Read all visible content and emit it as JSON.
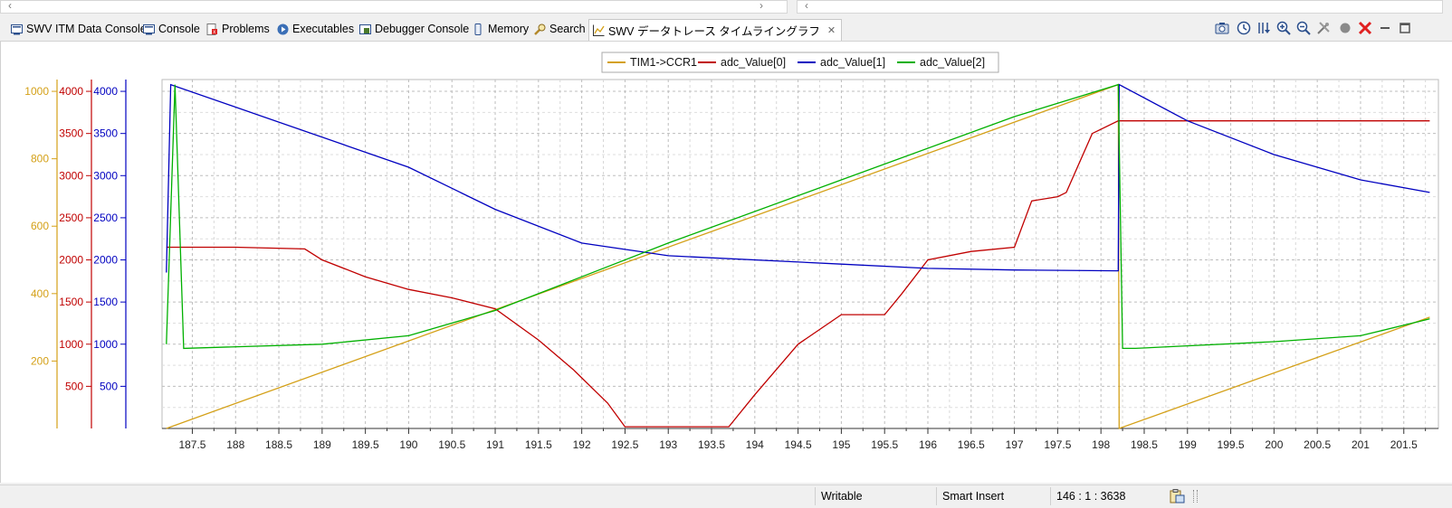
{
  "tabs": [
    {
      "label": "SWV ITM Data Console",
      "icon": "console-icon"
    },
    {
      "label": "Console",
      "icon": "console-icon"
    },
    {
      "label": "Problems",
      "icon": "problems-icon"
    },
    {
      "label": "Executables",
      "icon": "executables-icon"
    },
    {
      "label": "Debugger Console",
      "icon": "debugger-console-icon"
    },
    {
      "label": "Memory",
      "icon": "memory-icon"
    },
    {
      "label": "Search",
      "icon": "search-icon"
    },
    {
      "label": "SWV データトレース タイムライングラフ",
      "icon": "graph-icon",
      "active": true
    }
  ],
  "toolbar_icons": [
    "camera-icon",
    "clock-icon",
    "sort-icon",
    "zoom-in-icon",
    "zoom-out-icon",
    "settings-icon",
    "record-icon",
    "stop-icon",
    "minimize-icon",
    "maximize-icon"
  ],
  "status": {
    "mode": "Writable",
    "insert": "Smart Insert",
    "position": "146 : 1 : 3638"
  },
  "colors": {
    "TIM1": "#d4a017",
    "adc0": "#c00000",
    "adc1": "#0000c0",
    "adc2": "#00b000"
  },
  "chart_data": {
    "type": "line",
    "legend": [
      "TIM1->CCR1",
      "adc_Value[0]",
      "adc_Value[1]",
      "adc_Value[2]"
    ],
    "legend_placement": "top-center",
    "grid": true,
    "x_ticks": [
      "187.5",
      "188",
      "188.5",
      "189",
      "189.5",
      "190",
      "190.5",
      "191",
      "191.5",
      "192",
      "192.5",
      "193",
      "193.5",
      "194",
      "194.5",
      "195",
      "195.5",
      "196",
      "196.5",
      "197",
      "197.5",
      "198",
      "198.5",
      "199",
      "199.5",
      "200",
      "200.5",
      "201",
      "201.5"
    ],
    "xlim": [
      187.15,
      201.9
    ],
    "axes": [
      {
        "series": "TIM1->CCR1",
        "ticks": [
          "200",
          "400",
          "600",
          "800",
          "1000"
        ],
        "ylim": [
          0,
          1035
        ]
      },
      {
        "series": "adc_Value[0]",
        "ticks": [
          "500",
          "1000",
          "1500",
          "2000",
          "2500",
          "3000",
          "3500",
          "4000"
        ],
        "ylim": [
          0,
          4140
        ]
      },
      {
        "series": "adc_Value[1]",
        "ticks": [
          "500",
          "1000",
          "1500",
          "2000",
          "2500",
          "3000",
          "3500",
          "4000"
        ],
        "ylim": [
          0,
          4140
        ]
      }
    ],
    "series": [
      {
        "name": "TIM1->CCR1",
        "x": [
          187.2,
          198.2,
          198.21,
          201.8
        ],
        "y": [
          0,
          1020,
          0,
          330
        ]
      },
      {
        "name": "adc_Value[0]",
        "x": [
          187.2,
          188.0,
          188.8,
          189.0,
          189.5,
          190.0,
          190.5,
          191.0,
          191.5,
          191.9,
          192.3,
          192.5,
          193.0,
          193.7,
          194.0,
          194.5,
          195.0,
          195.5,
          195.7,
          196.0,
          196.5,
          197.0,
          197.2,
          197.5,
          197.6,
          197.9,
          198.2,
          201.8
        ],
        "y": [
          2150,
          2150,
          2130,
          2000,
          1800,
          1650,
          1550,
          1420,
          1050,
          700,
          300,
          20,
          20,
          20,
          400,
          1000,
          1350,
          1350,
          1600,
          2000,
          2100,
          2150,
          2700,
          2750,
          2800,
          3500,
          3650,
          3650
        ]
      },
      {
        "name": "adc_Value[1]",
        "x": [
          187.2,
          187.25,
          190.0,
          191.0,
          192.0,
          193.0,
          195.0,
          196.0,
          197.0,
          198.2,
          198.21,
          199.0,
          200.0,
          201.0,
          201.8
        ],
        "y": [
          1850,
          4080,
          3100,
          2600,
          2200,
          2050,
          1950,
          1900,
          1880,
          1870,
          4080,
          3650,
          3250,
          2950,
          2800
        ]
      },
      {
        "name": "adc_Value[2]",
        "x": [
          187.2,
          187.3,
          187.4,
          189.0,
          190.0,
          191.0,
          192.0,
          193.0,
          195.0,
          197.0,
          198.2,
          198.25,
          198.4,
          200.0,
          201.0,
          201.8
        ],
        "y": [
          1000,
          4080,
          950,
          1000,
          1100,
          1400,
          1800,
          2200,
          2950,
          3700,
          4080,
          950,
          950,
          1030,
          1100,
          1300
        ]
      }
    ]
  }
}
